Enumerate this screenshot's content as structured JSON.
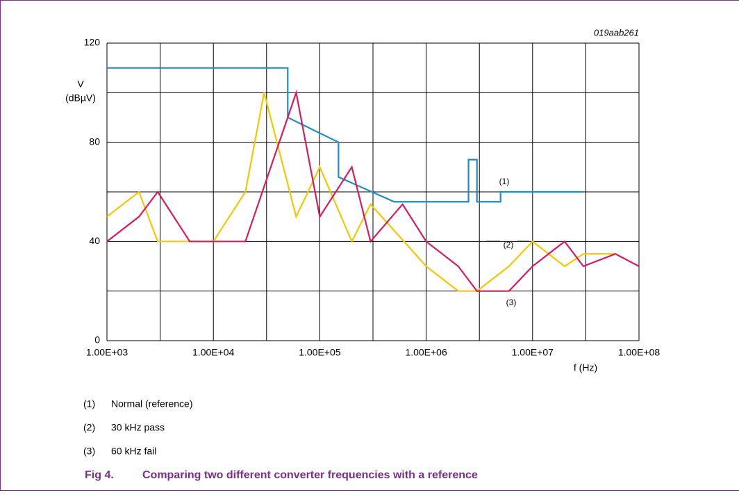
{
  "chart_data": {
    "type": "line",
    "figure_id": "019aab261",
    "y_label_line1": "V",
    "y_label_line2": "(dBµV)",
    "x_label": "f (Hz)",
    "caption_number": "Fig 4.",
    "caption": "Comparing two different converter frequencies with a reference",
    "log_x": true,
    "grid": true,
    "xlim": [
      1000,
      100000000
    ],
    "xticks": [
      {
        "value": 1000,
        "label": "1.00E+03"
      },
      {
        "value": 10000,
        "label": "1.00E+04"
      },
      {
        "value": 100000,
        "label": "1.00E+05"
      },
      {
        "value": 1000000,
        "label": "1.00E+06"
      },
      {
        "value": 10000000,
        "label": "1.00E+07"
      },
      {
        "value": 100000000,
        "label": "1.00E+08"
      }
    ],
    "xgrid": [
      3162.28,
      31622.8,
      316228,
      3162280,
      31622800
    ],
    "ylim": [
      0,
      120
    ],
    "yticks": [
      0,
      40,
      80,
      120
    ],
    "ygrid": [
      20,
      60,
      100
    ],
    "series": [
      {
        "name": "Normal (reference)",
        "label": "(1)",
        "color": "#1e8dc3",
        "x": [
          1000,
          50000,
          50000,
          150000,
          150000,
          500000,
          2500000,
          2500000,
          3000000,
          3000000,
          5000000,
          5000000,
          30000000
        ],
        "values": [
          110,
          110,
          90,
          80,
          66,
          56,
          56,
          73,
          73,
          56,
          56,
          60,
          60
        ]
      },
      {
        "name": "30 kHz pass",
        "label": "(2)",
        "color": "#f7c600",
        "x": [
          1000,
          2000,
          3000,
          10000,
          20000,
          30000,
          60000,
          100000,
          200000,
          300000,
          1000000,
          2000000,
          3000000,
          6000000,
          10000000,
          20000000,
          30000000,
          60000000
        ],
        "values": [
          50,
          60,
          40,
          40,
          60,
          100,
          50,
          70,
          40,
          55,
          30,
          20,
          20,
          30,
          40,
          30,
          35,
          35
        ]
      },
      {
        "name": "60 kHz fail",
        "label": "(3)",
        "color": "#d81b5e",
        "x": [
          1000,
          2000,
          3000,
          6000,
          20000,
          60000,
          100000,
          200000,
          300000,
          600000,
          1000000,
          2000000,
          3000000,
          6000000,
          10000000,
          20000000,
          30000000,
          60000000,
          100000000
        ],
        "values": [
          40,
          50,
          60,
          40,
          40,
          100,
          50,
          70,
          40,
          55,
          40,
          30,
          20,
          20,
          30,
          40,
          30,
          35,
          30
        ]
      }
    ]
  }
}
